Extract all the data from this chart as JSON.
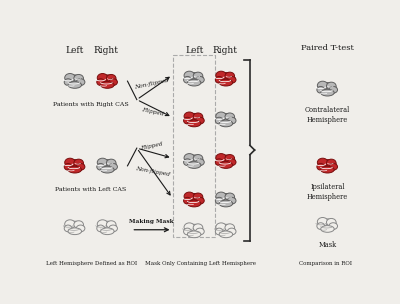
{
  "fig_width": 4.0,
  "fig_height": 3.04,
  "dpi": 100,
  "bg_color": "#f0eeea",
  "texts": {
    "left_header": "Left",
    "right_header": "Right",
    "mid_left_header": "Left",
    "mid_right_header": "Right",
    "paired_ttest": "Paired T-test",
    "right_cas": "Patients with Right CAS",
    "left_cas": "Patients with Left CAS",
    "non_flipped_top": "Non-flipped",
    "flipped_top": "Flipped",
    "flipped_bottom": "Flipped",
    "non_flipped_bottom": "Non-flipped",
    "making_mask": "Making Mask",
    "contralateral": "Contralateral\nHemisphere",
    "ipsilateral": "Ipsilateral\nHemisphere",
    "mask_label": "Mask",
    "bottom_left": "Left Hemisphere Defined as ROI",
    "bottom_mid": "Mask Only Containing Left Hemisphere",
    "bottom_right": "Comparison in ROI"
  },
  "colors": {
    "red_fill": "#c0282a",
    "red_edge": "#7a1010",
    "gray_fill": "#b8b8b8",
    "gray_edge": "#606060",
    "white_sulci": "#ffffff",
    "gray_sulci": "#888888",
    "outline_edge": "#888888",
    "dark_text": "#1a1a1a",
    "arrow_color": "#1a1a1a",
    "bracket_color": "#2a2a2a",
    "box_outline": "#aaaaaa"
  }
}
